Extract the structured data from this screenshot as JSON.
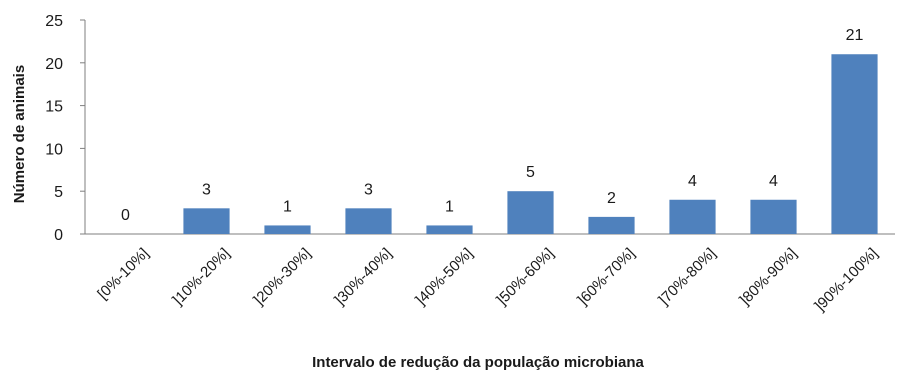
{
  "chart_data": {
    "type": "bar",
    "title": "",
    "xlabel": "Intervalo de redução da população microbiana",
    "ylabel": "Número de animais",
    "ylim": [
      0,
      25
    ],
    "yticks": [
      "0",
      "5",
      "10",
      "15",
      "20",
      "25"
    ],
    "grid": false,
    "categories": [
      "[0%-10%]",
      "]10%-20%]",
      "]20%-30%]",
      "]30%-40%]",
      "]40%-50%]",
      "]50%-60%]",
      "]60%-70%]",
      "]70%-80%]",
      "]80%-90%]",
      "]90%-100%]"
    ],
    "values": [
      0,
      3,
      1,
      3,
      1,
      5,
      2,
      4,
      4,
      21
    ],
    "data_labels": [
      "0",
      "3",
      "1",
      "3",
      "1",
      "5",
      "2",
      "4",
      "4",
      "21"
    ],
    "colors": {
      "bar": "#4F81BD",
      "axis": "#7f7f7f"
    }
  }
}
